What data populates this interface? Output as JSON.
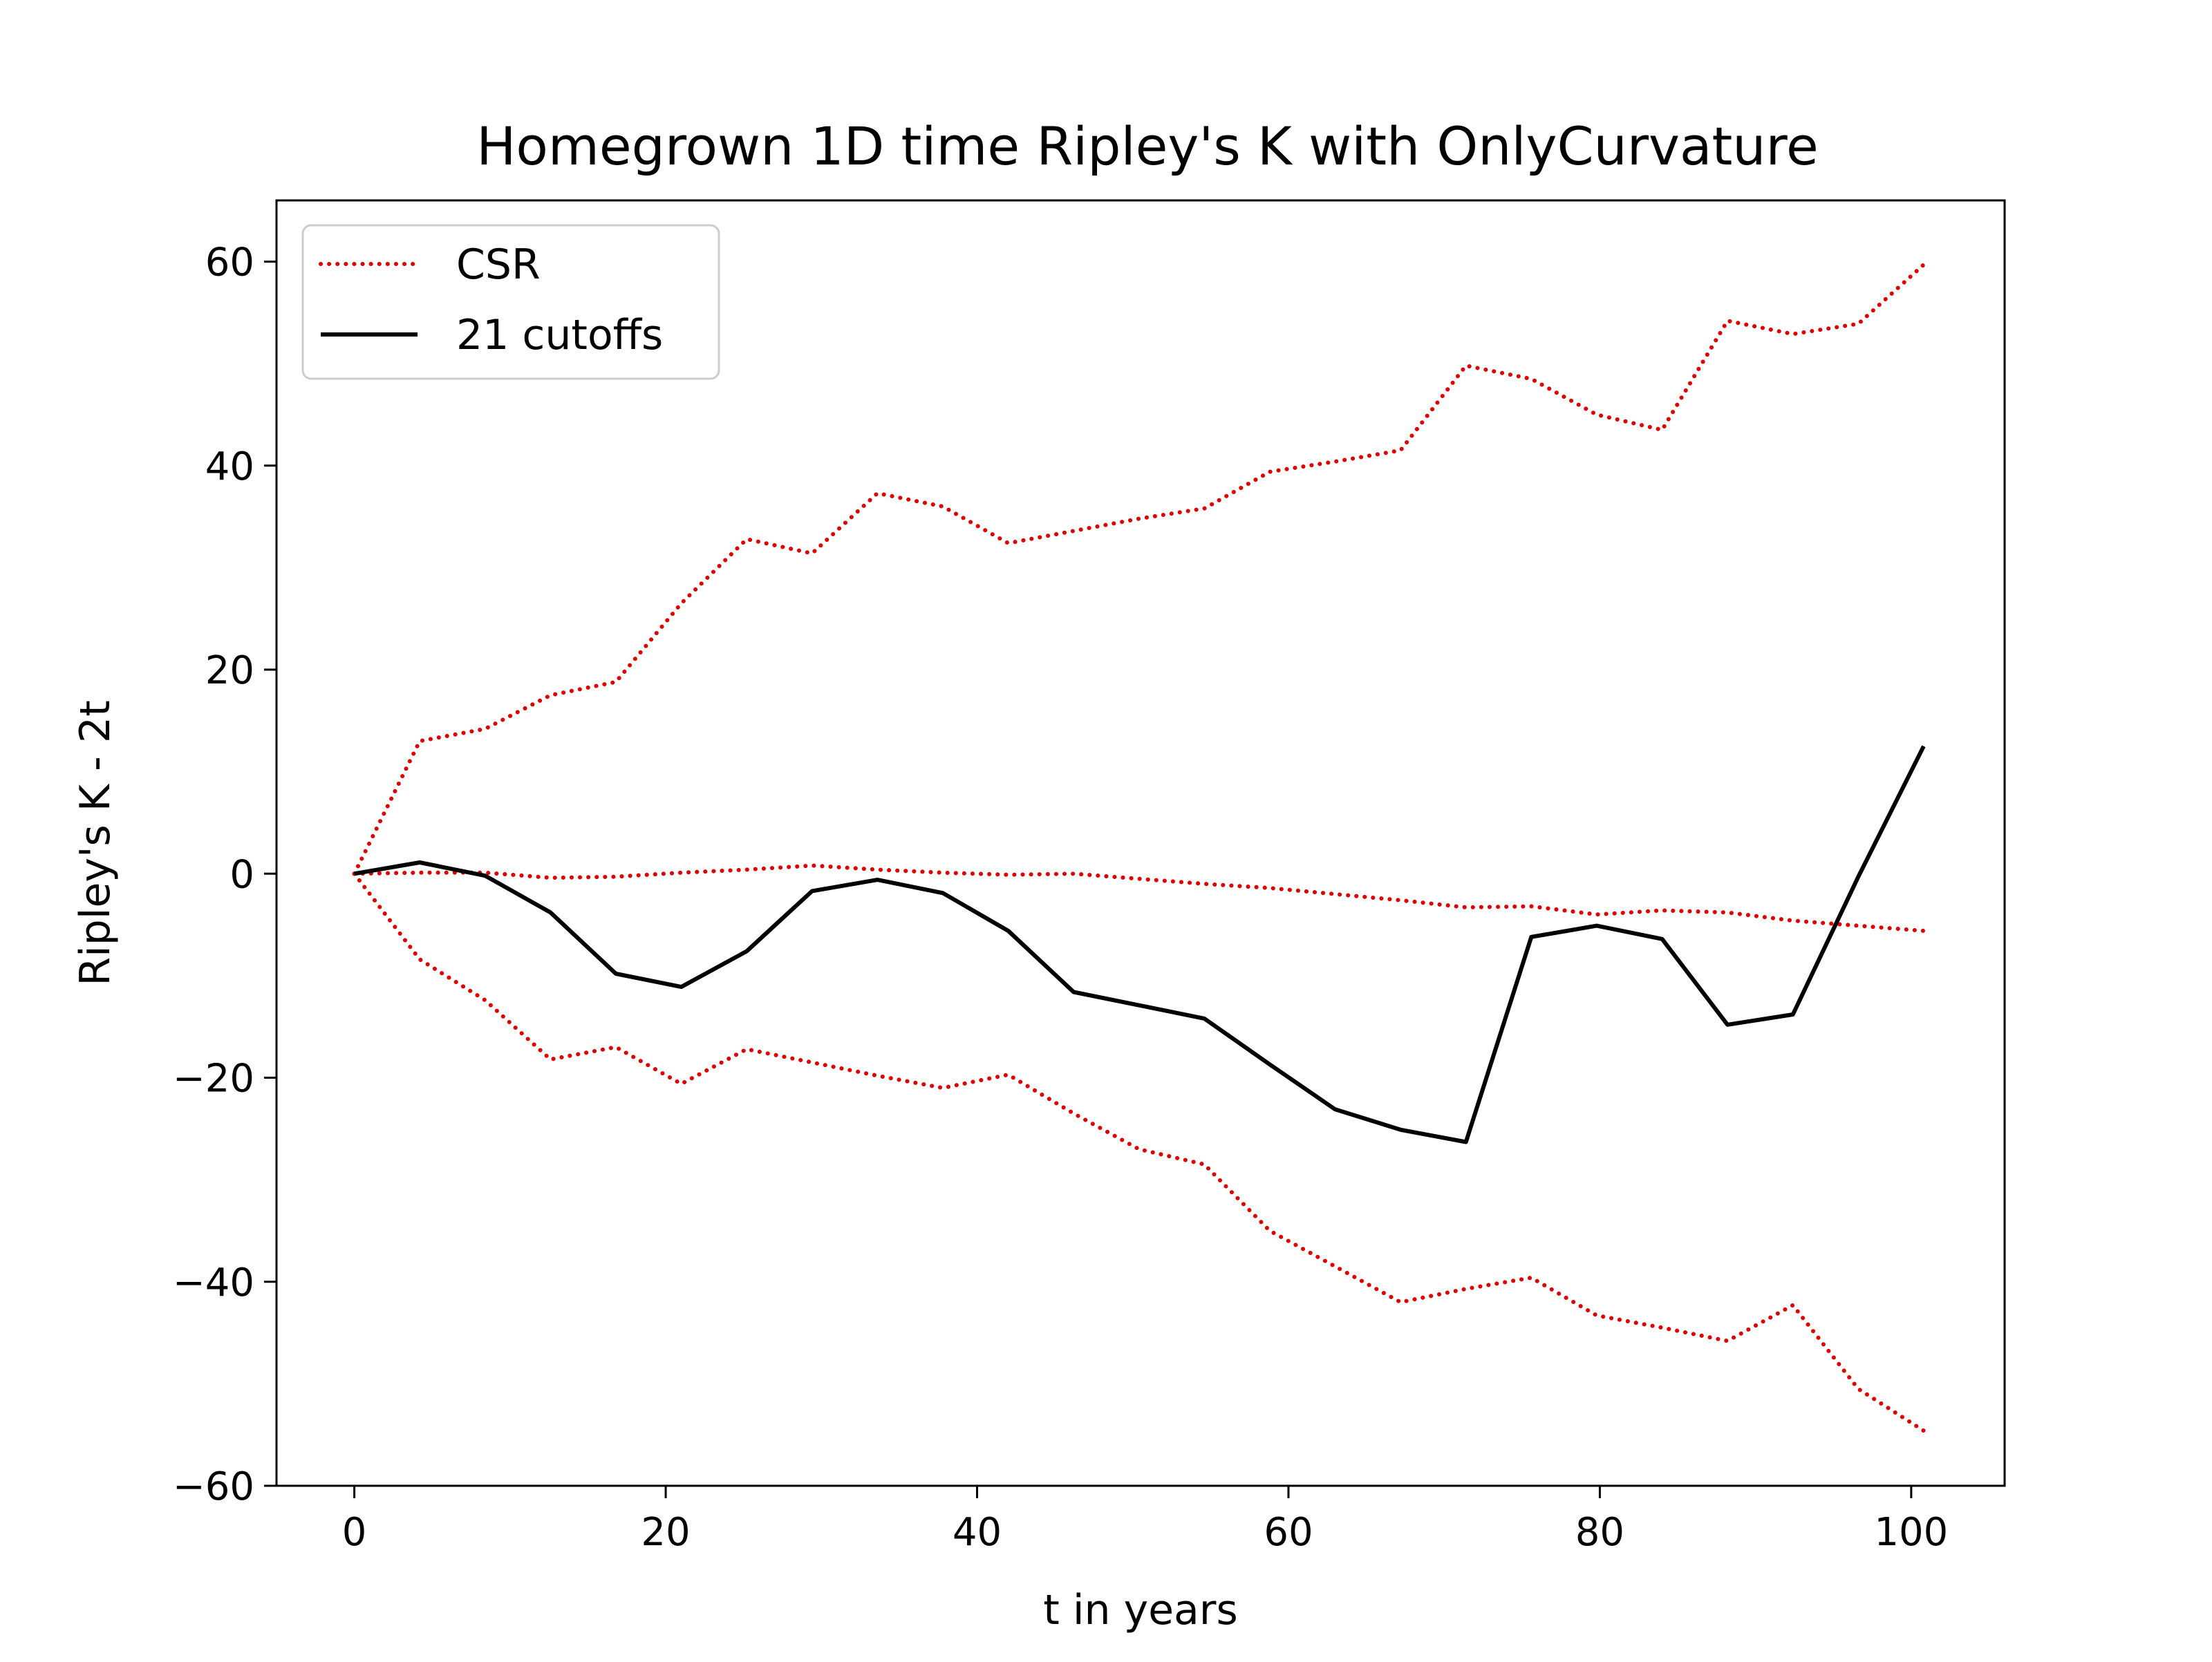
{
  "chart_data": {
    "type": "line",
    "title": "Homegrown 1D time Ripley's K with OnlyCurvature",
    "xlabel": "t in years",
    "ylabel": "Ripley's K - 2t",
    "xlim": [
      -5,
      106
    ],
    "ylim": [
      -60,
      66
    ],
    "xticks": [
      0,
      20,
      40,
      60,
      80,
      100
    ],
    "xtick_labels": [
      "0",
      "20",
      "40",
      "60",
      "80",
      "100"
    ],
    "yticks": [
      -60,
      -40,
      -20,
      0,
      20,
      40,
      60
    ],
    "ytick_labels": [
      "−60",
      "−40",
      "−20",
      "0",
      "20",
      "40",
      "60"
    ],
    "grid": false,
    "legend": {
      "placement": "upper-left",
      "entries": [
        {
          "label": "CSR",
          "color": "#e00000",
          "style": "dotted"
        },
        {
          "label": "21 cutoffs",
          "color": "#000000",
          "style": "solid"
        }
      ]
    },
    "x": [
      0,
      4.2,
      8.4,
      12.6,
      16.8,
      21,
      25.2,
      29.4,
      33.6,
      37.8,
      42,
      46.2,
      50.4,
      54.6,
      58.8,
      63,
      67.2,
      71.4,
      75.6,
      79.8,
      84,
      88.2,
      92.4,
      96.6,
      100.8
    ],
    "series": [
      {
        "name": "CSR",
        "color": "#e00000",
        "style": "dotted",
        "values": [
          0,
          13,
          14.2,
          17.5,
          18.8,
          26.5,
          32.8,
          31.4,
          37.3,
          36,
          32.4,
          33.6,
          34.8,
          35.8,
          39.4,
          40.4,
          41.5,
          49.8,
          48.5,
          45,
          43.5,
          54.2,
          52.9,
          53.9,
          59.7
        ]
      },
      {
        "name": "",
        "color": "#e00000",
        "style": "dotted",
        "values": [
          0,
          0.1,
          0.1,
          -0.4,
          -0.3,
          0.1,
          0.4,
          0.8,
          0.4,
          0.1,
          -0.1,
          0,
          -0.5,
          -1,
          -1.4,
          -2,
          -2.6,
          -3.3,
          -3.2,
          -4,
          -3.6,
          -3.8,
          -4.6,
          -5.1,
          -5.6
        ]
      },
      {
        "name": "",
        "color": "#e00000",
        "style": "dotted",
        "values": [
          0,
          -8.4,
          -12.4,
          -18.2,
          -17,
          -20.6,
          -17.2,
          -18.5,
          -19.8,
          -21,
          -19.7,
          -23.5,
          -27,
          -28.5,
          -35,
          -38.5,
          -42,
          -40.7,
          -39.6,
          -43.3,
          -44.5,
          -45.8,
          -42.3,
          -50.5,
          -54.6
        ]
      },
      {
        "name": "21 cutoffs",
        "color": "#000000",
        "style": "solid",
        "values": [
          0,
          1.1,
          -0.2,
          -3.8,
          -9.8,
          -11.1,
          -7.6,
          -1.7,
          -0.6,
          -1.9,
          -5.6,
          -11.6,
          -12.9,
          -14.2,
          -18.7,
          -23.1,
          -25.1,
          -26.3,
          -6.2,
          -5.1,
          -6.4,
          -14.8,
          -13.8,
          -0.3,
          12.5
        ]
      }
    ]
  }
}
